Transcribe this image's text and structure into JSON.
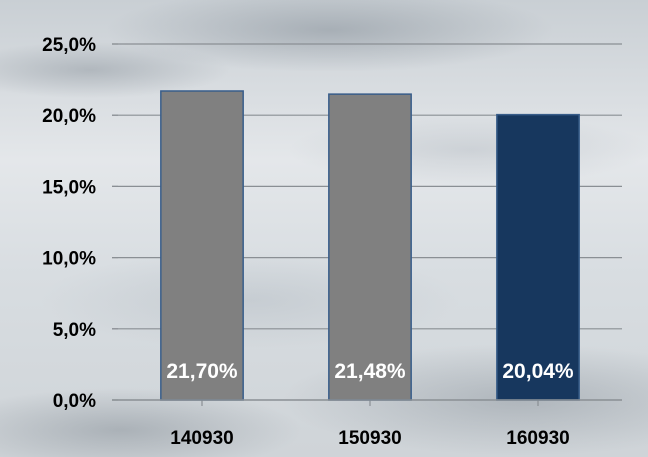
{
  "chart_data": {
    "type": "bar",
    "categories": [
      "140930",
      "150930",
      "160930"
    ],
    "values": [
      21.7,
      21.48,
      20.04
    ],
    "data_labels": [
      "21,70%",
      "21,48%",
      "20,04%"
    ],
    "bar_colors": [
      "#808080",
      "#808080",
      "#17375e"
    ],
    "bar_border": "#385d8a",
    "ylim": [
      0,
      25
    ],
    "yticks": [
      0,
      5,
      10,
      15,
      20,
      25
    ],
    "ytick_labels": [
      "0,0%",
      "5,0%",
      "10,0%",
      "15,0%",
      "20,0%",
      "25,0%"
    ],
    "grid": true,
    "legend": false
  }
}
